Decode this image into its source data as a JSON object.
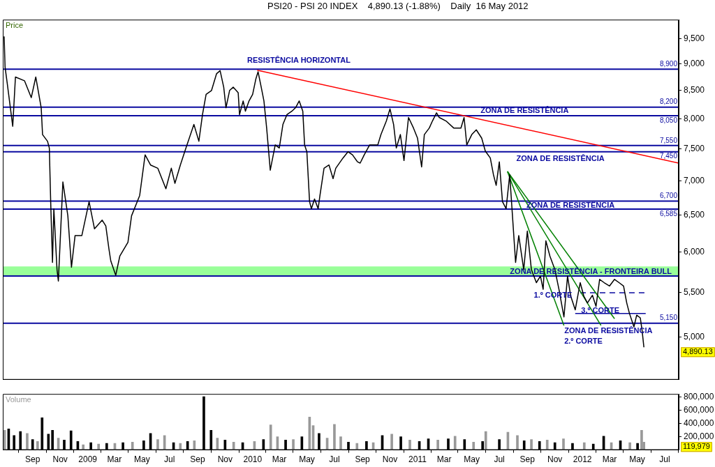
{
  "chart_data": [
    {
      "type": "line",
      "title": "PSI20 - PSI 20 INDEX    4,890.13 (-1.88%)    Daily  16 May 2012",
      "ylabel": "Price",
      "log": true,
      "tick_labels": "y",
      "xlim": [
        "2008-06-27",
        "2012-08-01"
      ],
      "ylim": [
        4560,
        9900
      ],
      "yticks": [
        {
          "value": 5000,
          "label": "5,000"
        },
        {
          "value": 5500,
          "label": "5,500"
        },
        {
          "value": 6000,
          "label": "6,000"
        },
        {
          "value": 6500,
          "label": "6,500"
        },
        {
          "value": 7000,
          "label": "7,000"
        },
        {
          "value": 7500,
          "label": "7,500"
        },
        {
          "value": 8000,
          "label": "8,000"
        },
        {
          "value": 8500,
          "label": "8,500"
        },
        {
          "value": 9000,
          "label": "9,000"
        },
        {
          "value": 9500,
          "label": "9,500"
        }
      ],
      "series": [
        {
          "color": "#000000",
          "x": [
            "2008-06-30",
            "2008-07-02",
            "2008-07-07",
            "2008-07-19",
            "2008-07-25",
            "2008-08-14",
            "2008-08-29",
            "2008-09-08",
            "2008-09-20",
            "2008-09-23",
            "2008-10-04",
            "2008-10-08",
            "2008-10-11",
            "2008-10-15",
            "2008-10-18",
            "2008-10-25",
            "2008-10-28",
            "2008-11-07",
            "2008-11-18",
            "2008-11-26",
            "2008-12-04",
            "2008-12-19",
            "2009-01-04",
            "2009-01-16",
            "2009-02-02",
            "2009-02-10",
            "2009-02-17",
            "2009-02-21",
            "2009-03-04",
            "2009-03-13",
            "2009-03-31",
            "2009-04-08",
            "2009-04-26",
            "2009-05-08",
            "2009-05-20",
            "2009-06-05",
            "2009-06-23",
            "2009-07-05",
            "2009-07-13",
            "2009-07-25",
            "2009-08-05",
            "2009-08-24",
            "2009-09-04",
            "2009-09-12",
            "2009-09-20",
            "2009-10-02",
            "2009-10-13",
            "2009-10-21",
            "2009-10-29",
            "2009-11-03",
            "2009-11-11",
            "2009-11-19",
            "2009-11-30",
            "2009-12-03",
            "2009-12-11",
            "2009-12-16",
            "2009-12-24",
            "2010-01-01",
            "2010-01-08",
            "2010-01-13",
            "2010-01-20",
            "2010-01-26",
            "2010-02-01",
            "2010-02-09",
            "2010-02-20",
            "2010-03-01",
            "2010-03-09",
            "2010-03-18",
            "2010-03-29",
            "2010-04-06",
            "2010-04-14",
            "2010-04-22",
            "2010-04-26",
            "2010-05-01",
            "2010-05-07",
            "2010-05-11",
            "2010-05-18",
            "2010-05-26",
            "2010-05-30",
            "2010-06-08",
            "2010-06-19",
            "2010-06-28",
            "2010-07-04",
            "2010-07-20",
            "2010-07-31",
            "2010-08-10",
            "2010-08-21",
            "2010-08-27",
            "2010-09-05",
            "2010-09-17",
            "2010-10-05",
            "2010-10-12",
            "2010-10-24",
            "2010-11-01",
            "2010-11-09",
            "2010-11-15",
            "2010-11-24",
            "2010-12-02",
            "2010-12-12",
            "2010-12-23",
            "2011-01-01",
            "2011-01-10",
            "2011-01-16",
            "2011-01-27",
            "2011-02-03",
            "2011-02-12",
            "2011-02-18",
            "2011-03-05",
            "2011-03-22",
            "2011-04-07",
            "2011-04-14",
            "2011-04-20",
            "2011-05-01",
            "2011-05-11",
            "2011-05-23",
            "2011-05-31",
            "2011-06-11",
            "2011-06-18",
            "2011-06-24",
            "2011-07-01",
            "2011-07-08",
            "2011-07-16",
            "2011-07-24",
            "2011-08-06",
            "2011-08-13",
            "2011-08-24",
            "2011-09-01",
            "2011-09-10",
            "2011-09-21",
            "2011-09-30",
            "2011-10-06",
            "2011-10-12",
            "2011-10-21",
            "2011-11-01",
            "2011-11-10",
            "2011-11-21",
            "2011-11-29",
            "2011-12-06",
            "2011-12-16",
            "2011-12-27",
            "2012-01-04",
            "2012-01-12",
            "2012-01-23",
            "2012-01-31",
            "2012-02-08",
            "2012-02-18",
            "2012-03-01",
            "2012-03-12",
            "2012-03-22",
            "2012-04-01",
            "2012-04-08",
            "2012-04-14",
            "2012-04-24",
            "2012-04-30",
            "2012-05-08",
            "2012-05-12",
            "2012-05-16"
          ],
          "values": [
            9550,
            8940,
            8620,
            7870,
            8750,
            8680,
            8370,
            8750,
            8190,
            7730,
            7620,
            7510,
            6690,
            5870,
            6590,
            5780,
            5640,
            6980,
            6490,
            5810,
            6220,
            6220,
            6690,
            6310,
            6430,
            6350,
            6040,
            5890,
            5710,
            5950,
            6130,
            6490,
            6780,
            7400,
            7240,
            7190,
            6880,
            7190,
            6960,
            7240,
            7480,
            7900,
            7620,
            8070,
            8430,
            8500,
            8810,
            8870,
            8560,
            8190,
            8500,
            8560,
            8460,
            8070,
            8310,
            8130,
            8310,
            8430,
            8710,
            8850,
            8560,
            8310,
            7840,
            7160,
            7560,
            7510,
            7900,
            8070,
            8130,
            8190,
            8310,
            8130,
            7560,
            7450,
            6690,
            6590,
            6730,
            6590,
            6780,
            7190,
            7240,
            7030,
            7190,
            7350,
            7450,
            7400,
            7290,
            7270,
            7400,
            7560,
            7560,
            7730,
            7960,
            8170,
            7900,
            7510,
            7730,
            7310,
            8020,
            7840,
            7670,
            7210,
            7730,
            7840,
            7960,
            8100,
            8020,
            7960,
            7840,
            7840,
            8020,
            7560,
            7730,
            7810,
            7670,
            7460,
            7350,
            7090,
            6930,
            7290,
            6690,
            6590,
            7090,
            5870,
            6220,
            5780,
            6280,
            5780,
            5620,
            5700,
            5540,
            6150,
            5950,
            5780,
            5540,
            5220,
            5700,
            5460,
            5300,
            5620,
            5460,
            5380,
            5470,
            5340,
            5660,
            5620,
            5580,
            5660,
            5620,
            5580,
            5380,
            5260,
            5110,
            5240,
            5210,
            5070,
            4890.13
          ]
        },
        {
          "color": "#ff0000",
          "x": [
            "2010-01-11",
            "2012-08-01"
          ],
          "values": [
            8880,
            7270
          ]
        },
        {
          "color": "#008000",
          "x": [
            "2011-07-19",
            "2011-11-21"
          ],
          "values": [
            7140,
            5125
          ]
        },
        {
          "color": "#008000",
          "x": [
            "2011-07-19",
            "2012-02-11"
          ],
          "values": [
            7140,
            5125
          ]
        },
        {
          "color": "#008000",
          "x": [
            "2011-07-19",
            "2012-03-12"
          ],
          "values": [
            7140,
            5200
          ]
        },
        {
          "color": "#0a0aa0",
          "line_style": "dashed",
          "x": [
            "2011-12-27",
            "2012-05-20"
          ],
          "values": [
            5500,
            5500
          ]
        },
        {
          "color": "#0a0aa0",
          "x": [
            "2011-12-16",
            "2012-05-20"
          ],
          "values": [
            5260,
            5260
          ]
        }
      ],
      "bands": [
        {
          "axis": "y",
          "from": 5700,
          "to": 5820,
          "color": "#99ff99"
        }
      ],
      "ref_lines": [
        {
          "axis": "y",
          "value": 8900,
          "label": "8,900",
          "color": "#0a0aa0"
        },
        {
          "axis": "y",
          "value": 8200,
          "label": "8,200",
          "color": "#0a0aa0"
        },
        {
          "axis": "y",
          "value": 8050,
          "label": "8,050",
          "color": "#0a0aa0"
        },
        {
          "axis": "y",
          "value": 7550,
          "label": "7,550",
          "color": "#0a0aa0"
        },
        {
          "axis": "y",
          "value": 7450,
          "label": "7,450",
          "color": "#0a0aa0"
        },
        {
          "axis": "y",
          "value": 6700,
          "label": "6,700",
          "color": "#0a0aa0"
        },
        {
          "axis": "y",
          "value": 6585,
          "label": "6,585",
          "color": "#0a0aa0"
        },
        {
          "axis": "y",
          "value": 5700,
          "color": "#0a0aa0"
        },
        {
          "axis": "y",
          "value": 5150,
          "label": "5,150",
          "color": "#0a0aa0"
        }
      ],
      "annotations": [
        "RESISTÊNCIA HORIZONTAL",
        "ZONA DE RESISTÊNCIA",
        "ZONA DE RESISTÊNCIA",
        "ZONA DE RESISTÊNCIA",
        "ZONA DE RESISTÊNCIA - FRONTEIRA BULL",
        "ZONA DE RESISTÊNCIA",
        "1.º CORTE",
        "3.º CORTE",
        "2.º CORTE",
        "4,890.13"
      ]
    },
    {
      "type": "bar",
      "ylabel": "Volume",
      "xlim": [
        "2008-06-27",
        "2012-08-01"
      ],
      "ylim": [
        0,
        850000
      ],
      "yticks": [
        {
          "value": 200000,
          "label": "200,000"
        },
        {
          "value": 400000,
          "label": "400,000"
        },
        {
          "value": 600000,
          "label": "600,000"
        },
        {
          "value": 800000,
          "label": "800,000"
        }
      ],
      "xticks": [
        {
          "value": "2008-09-01",
          "label": "Sep"
        },
        {
          "value": "2008-11-01",
          "label": "Nov"
        },
        {
          "value": "2009-01-01",
          "label": "2009"
        },
        {
          "value": "2009-03-01",
          "label": "Mar"
        },
        {
          "value": "2009-05-01",
          "label": "May"
        },
        {
          "value": "2009-07-01",
          "label": "Jul"
        },
        {
          "value": "2009-09-01",
          "label": "Sep"
        },
        {
          "value": "2009-11-01",
          "label": "Nov"
        },
        {
          "value": "2010-01-01",
          "label": "2010"
        },
        {
          "value": "2010-03-01",
          "label": "Mar"
        },
        {
          "value": "2010-05-01",
          "label": "May"
        },
        {
          "value": "2010-07-01",
          "label": "Jul"
        },
        {
          "value": "2010-09-01",
          "label": "Sep"
        },
        {
          "value": "2010-11-01",
          "label": "Nov"
        },
        {
          "value": "2011-01-01",
          "label": "2011"
        },
        {
          "value": "2011-03-01",
          "label": "Mar"
        },
        {
          "value": "2011-05-01",
          "label": "May"
        },
        {
          "value": "2011-07-01",
          "label": "Jul"
        },
        {
          "value": "2011-09-01",
          "label": "Sep"
        },
        {
          "value": "2011-11-01",
          "label": "Nov"
        },
        {
          "value": "2012-01-01",
          "label": "2012"
        },
        {
          "value": "2012-03-01",
          "label": "Mar"
        },
        {
          "value": "2012-05-01",
          "label": "May"
        },
        {
          "value": "2012-07-01",
          "label": "Jul"
        }
      ],
      "x": [
        "2008-07-01",
        "2008-07-10",
        "2008-07-22",
        "2008-08-05",
        "2008-08-20",
        "2008-09-01",
        "2008-09-12",
        "2008-09-22",
        "2008-10-06",
        "2008-10-15",
        "2008-10-28",
        "2008-11-10",
        "2008-11-25",
        "2008-12-10",
        "2008-12-22",
        "2009-01-08",
        "2009-01-25",
        "2009-02-12",
        "2009-03-02",
        "2009-03-20",
        "2009-04-10",
        "2009-05-05",
        "2009-05-20",
        "2009-06-05",
        "2009-06-20",
        "2009-07-10",
        "2009-07-25",
        "2009-08-10",
        "2009-08-25",
        "2009-09-15",
        "2009-10-01",
        "2009-10-15",
        "2009-11-01",
        "2009-11-20",
        "2009-12-10",
        "2010-01-05",
        "2010-01-25",
        "2010-02-10",
        "2010-02-25",
        "2010-03-15",
        "2010-04-01",
        "2010-04-20",
        "2010-05-07",
        "2010-05-15",
        "2010-05-28",
        "2010-06-15",
        "2010-07-01",
        "2010-07-15",
        "2010-08-01",
        "2010-08-20",
        "2010-09-10",
        "2010-09-25",
        "2010-10-15",
        "2010-11-05",
        "2010-11-25",
        "2010-12-15",
        "2011-01-05",
        "2011-01-25",
        "2011-02-15",
        "2011-03-10",
        "2011-03-25",
        "2011-04-15",
        "2011-05-05",
        "2011-05-25",
        "2011-06-01",
        "2011-07-01",
        "2011-07-20",
        "2011-08-10",
        "2011-08-25",
        "2011-09-10",
        "2011-09-28",
        "2011-10-15",
        "2011-11-01",
        "2011-11-20",
        "2011-12-10",
        "2012-01-05",
        "2012-01-25",
        "2012-02-17",
        "2012-03-05",
        "2012-03-25",
        "2012-04-15",
        "2012-05-02",
        "2012-05-11",
        "2012-05-16"
      ],
      "values": [
        300000,
        320000,
        220000,
        280000,
        250000,
        160000,
        130000,
        490000,
        240000,
        300000,
        180000,
        150000,
        290000,
        130000,
        80000,
        110000,
        90000,
        100000,
        100000,
        110000,
        120000,
        140000,
        250000,
        160000,
        220000,
        110000,
        100000,
        130000,
        140000,
        810000,
        300000,
        180000,
        150000,
        120000,
        110000,
        130000,
        160000,
        380000,
        200000,
        150000,
        160000,
        200000,
        500000,
        370000,
        250000,
        180000,
        390000,
        200000,
        120000,
        100000,
        130000,
        110000,
        220000,
        240000,
        200000,
        150000,
        130000,
        170000,
        150000,
        170000,
        210000,
        160000,
        120000,
        130000,
        280000,
        160000,
        270000,
        220000,
        140000,
        160000,
        130000,
        150000,
        110000,
        170000,
        100000,
        110000,
        90000,
        210000,
        110000,
        140000,
        110000,
        100000,
        300000,
        119979
      ],
      "colors": [
        "#999999",
        "#000000",
        "#000000",
        "#000000",
        "#999999",
        "#000000",
        "#999999",
        "#000000",
        "#000000",
        "#000000",
        "#999999",
        "#000000",
        "#000000",
        "#000000",
        "#999999",
        "#000000",
        "#999999",
        "#000000",
        "#999999",
        "#000000",
        "#999999",
        "#000000",
        "#000000",
        "#999999",
        "#999999",
        "#000000",
        "#999999",
        "#000000",
        "#999999",
        "#000000",
        "#000000",
        "#999999",
        "#000000",
        "#999999",
        "#000000",
        "#999999",
        "#000000",
        "#999999",
        "#999999",
        "#000000",
        "#999999",
        "#000000",
        "#999999",
        "#999999",
        "#000000",
        "#999999",
        "#999999",
        "#999999",
        "#000000",
        "#999999",
        "#000000",
        "#999999",
        "#000000",
        "#999999",
        "#000000",
        "#999999",
        "#000000",
        "#000000",
        "#999999",
        "#000000",
        "#999999",
        "#000000",
        "#999999",
        "#000000",
        "#999999",
        "#000000",
        "#999999",
        "#999999",
        "#000000",
        "#999999",
        "#000000",
        "#999999",
        "#000000",
        "#999999",
        "#000000",
        "#999999",
        "#000000",
        "#000000",
        "#999999",
        "#000000",
        "#999999",
        "#000000",
        "#999999",
        "#999999"
      ],
      "annotations": [
        "119,979"
      ]
    }
  ]
}
